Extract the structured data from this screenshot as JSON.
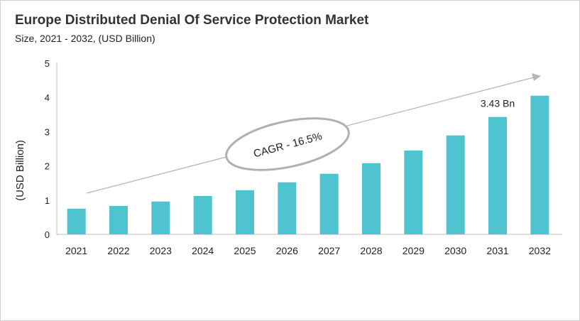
{
  "chart_data": {
    "type": "bar",
    "title": "Europe Distributed Denial Of Service Protection Market",
    "subtitle": "Size, 2021 - 2032, (USD Billion)",
    "xlabel": "",
    "ylabel": "(USD Billion)",
    "ylim": [
      0,
      5
    ],
    "yticks": [
      0,
      1,
      2,
      3,
      4,
      5
    ],
    "grid": false,
    "categories": [
      "2021",
      "2022",
      "2023",
      "2024",
      "2025",
      "2026",
      "2027",
      "2028",
      "2029",
      "2030",
      "2031",
      "2032"
    ],
    "values": [
      0.75,
      0.83,
      0.96,
      1.12,
      1.29,
      1.52,
      1.77,
      2.08,
      2.45,
      2.89,
      3.43,
      4.05
    ],
    "bar_color": "#4fc3cf",
    "annotations": {
      "value_label": {
        "category": "2031",
        "text": "3.43 Bn"
      },
      "cagr": "CAGR - 16.5%"
    }
  }
}
